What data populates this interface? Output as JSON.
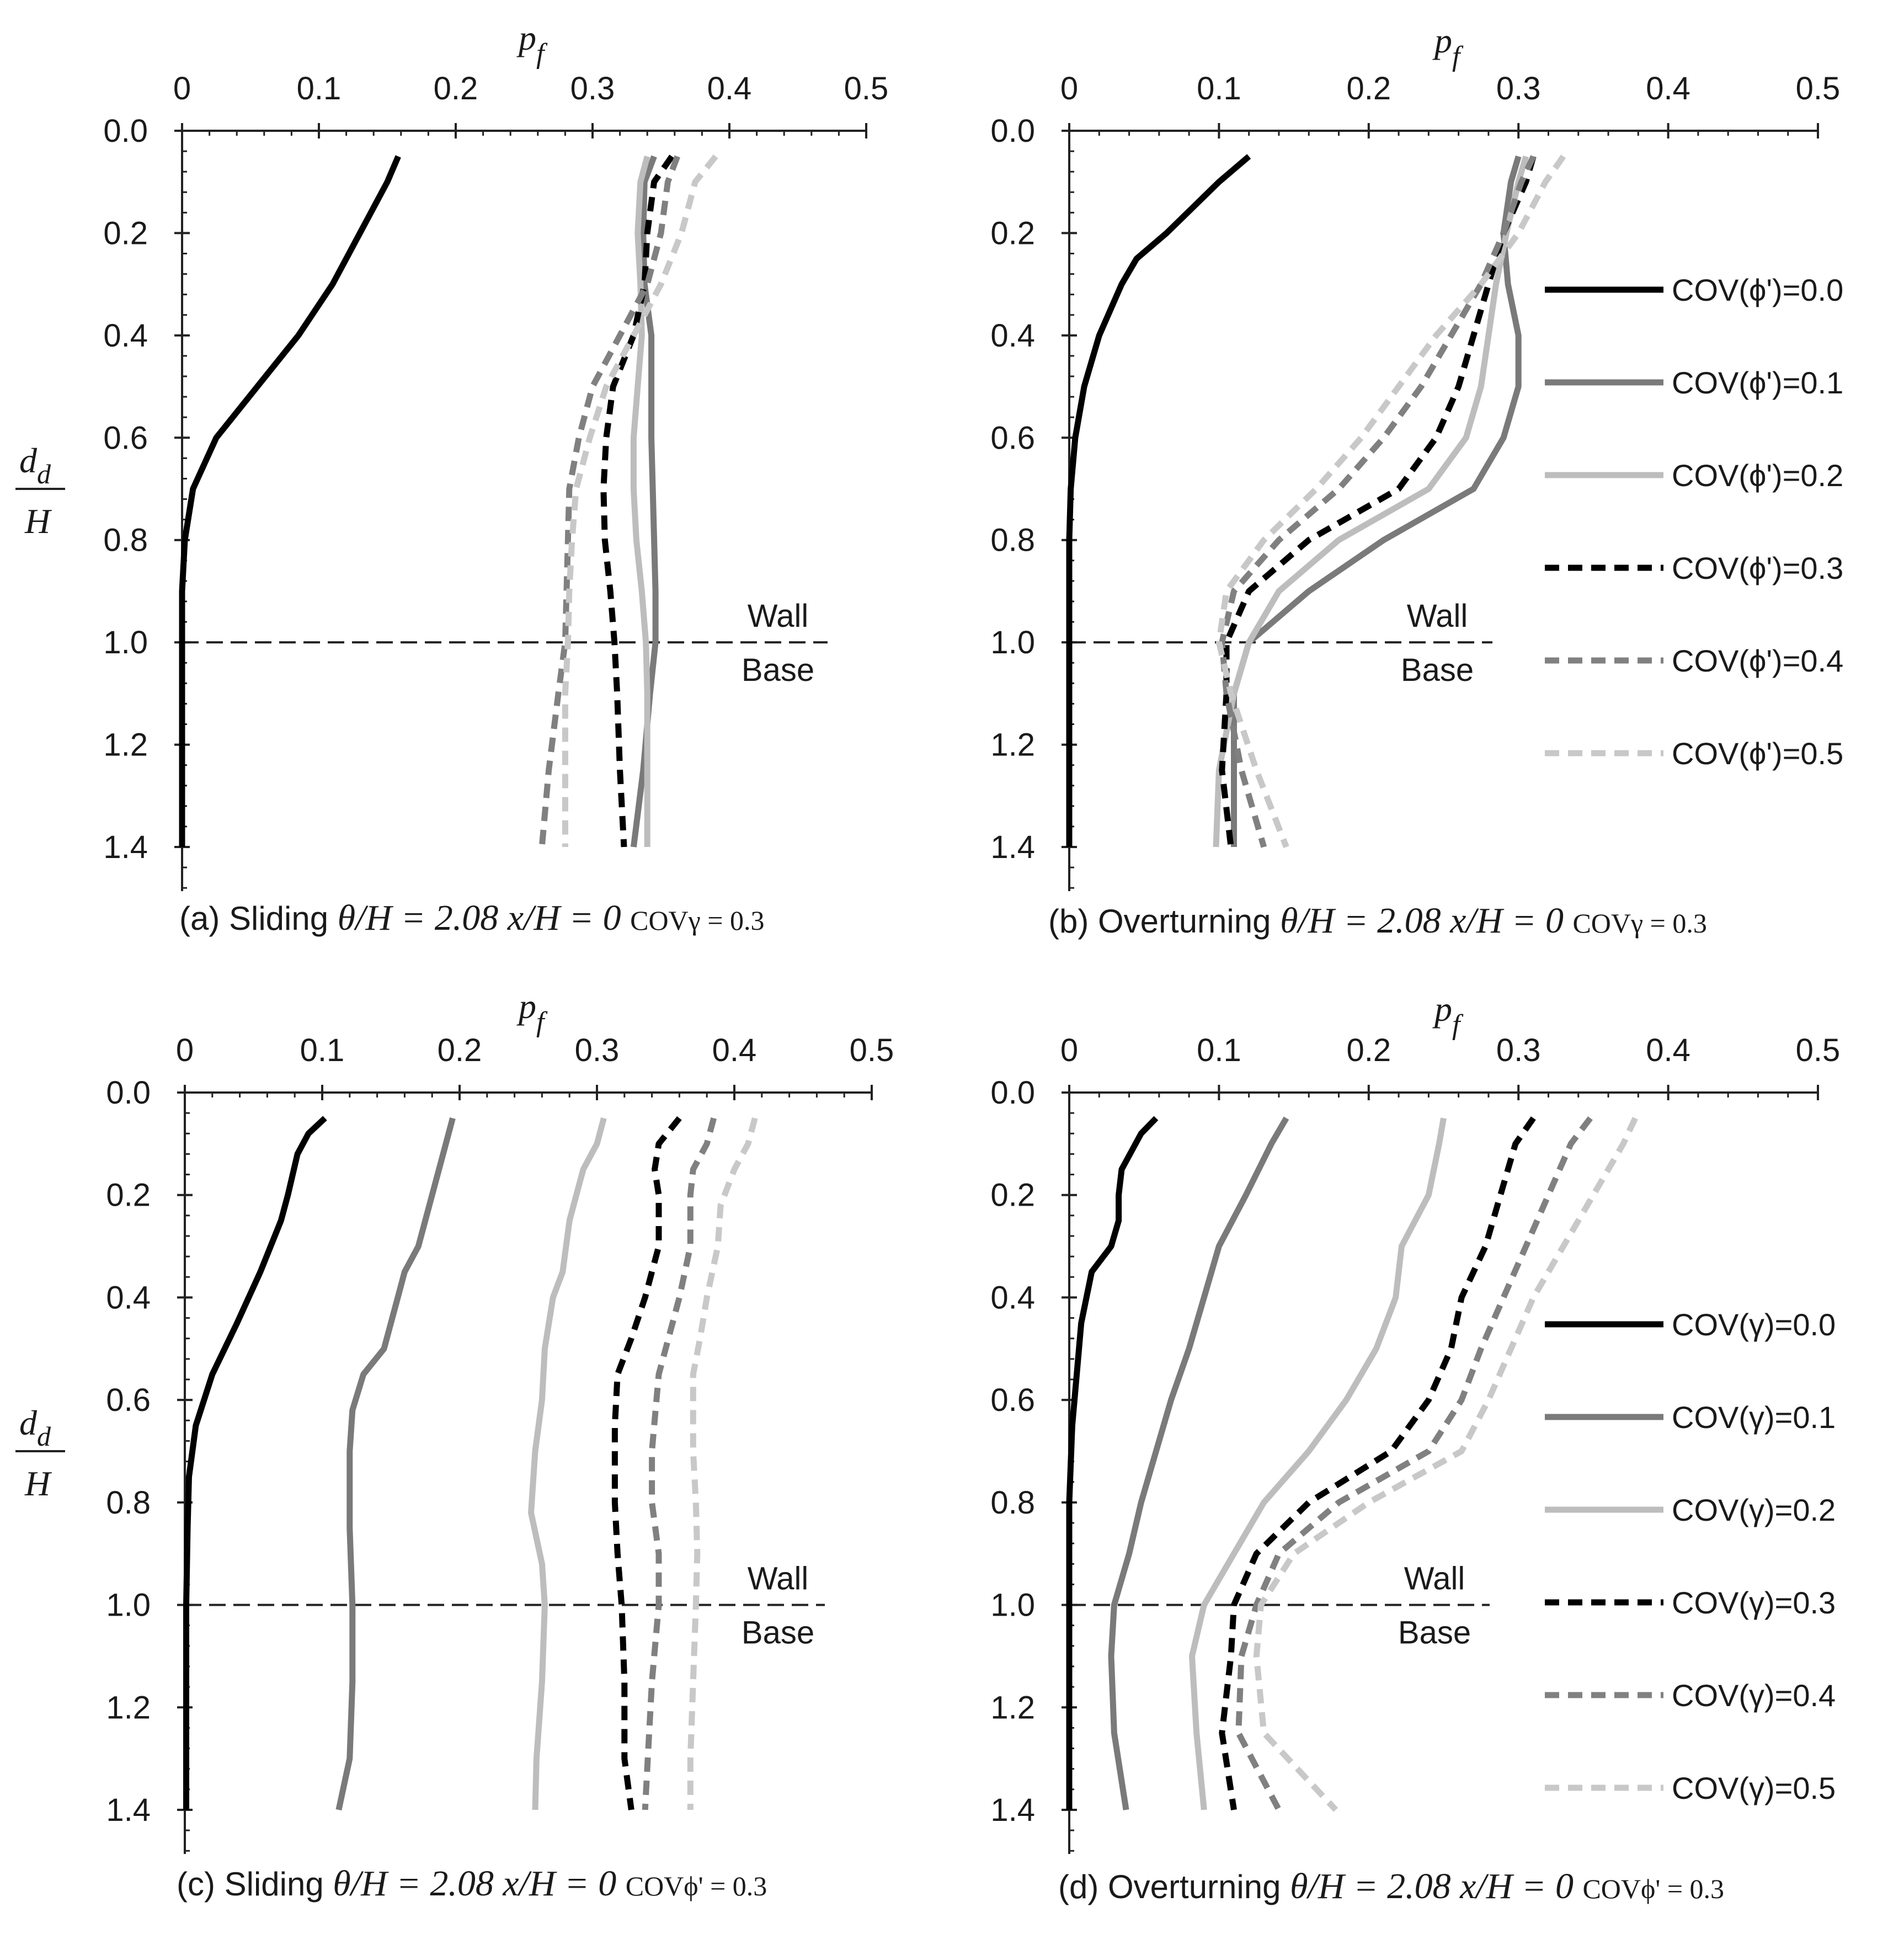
{
  "chart_data": [
    {
      "panel": "a",
      "type": "line",
      "xlabel": "p_f",
      "ylabel": "d_d / H",
      "xlim": [
        0,
        0.5
      ],
      "ylim": [
        0,
        1.4
      ],
      "xticks": [
        "0",
        "0.1",
        "0.2",
        "0.3",
        "0.4",
        "0.5"
      ],
      "yticks": [
        "0.0",
        "0.2",
        "0.4",
        "0.6",
        "0.8",
        "1.0",
        "1.2",
        "1.4"
      ],
      "annotations": {
        "wall": "Wall",
        "base": "Base",
        "wall_base_level": 1.0
      },
      "caption": {
        "prefix": "(a) Sliding",
        "formula": "θ/H = 2.08  x/H = 0",
        "cov": "COVγ = 0.3"
      },
      "legend": [],
      "series": [
        {
          "name": "COV(ϕ')=0.0",
          "color": "#000000",
          "dash": "solid",
          "x": [
            0.158,
            0.15,
            0.13,
            0.11,
            0.085,
            0.055,
            0.025,
            0.008,
            0.002,
            0,
            0,
            0,
            0,
            0
          ],
          "y": [
            0.05,
            0.1,
            0.2,
            0.3,
            0.4,
            0.5,
            0.6,
            0.7,
            0.8,
            0.9,
            1.0,
            1.1,
            1.2,
            1.4
          ]
        },
        {
          "name": "COV(ϕ')=0.1",
          "color": "#7a7a7a",
          "dash": "solid",
          "x": [
            0.345,
            0.338,
            0.337,
            0.338,
            0.343,
            0.343,
            0.343,
            0.344,
            0.345,
            0.346,
            0.346,
            0.342,
            0.337,
            0.33
          ],
          "y": [
            0.05,
            0.1,
            0.2,
            0.3,
            0.4,
            0.5,
            0.6,
            0.7,
            0.8,
            0.9,
            1.0,
            1.1,
            1.25,
            1.4
          ]
        },
        {
          "name": "COV(ϕ')=0.2",
          "color": "#bdbdbd",
          "dash": "solid",
          "x": [
            0.34,
            0.335,
            0.333,
            0.335,
            0.336,
            0.333,
            0.33,
            0.33,
            0.332,
            0.336,
            0.339,
            0.34,
            0.34,
            0.34
          ],
          "y": [
            0.05,
            0.1,
            0.2,
            0.3,
            0.4,
            0.5,
            0.6,
            0.7,
            0.8,
            0.9,
            1.0,
            1.1,
            1.25,
            1.4
          ]
        },
        {
          "name": "COV(ϕ')=0.3",
          "color": "#000000",
          "dash": "dash",
          "x": [
            0.358,
            0.345,
            0.34,
            0.338,
            0.33,
            0.315,
            0.31,
            0.308,
            0.309,
            0.313,
            0.316,
            0.318,
            0.32,
            0.323
          ],
          "y": [
            0.05,
            0.1,
            0.2,
            0.3,
            0.4,
            0.5,
            0.6,
            0.7,
            0.8,
            0.9,
            1.0,
            1.1,
            1.25,
            1.4
          ]
        },
        {
          "name": "COV(ϕ')=0.4",
          "color": "#808080",
          "dash": "dash",
          "x": [
            0.362,
            0.355,
            0.35,
            0.34,
            0.32,
            0.3,
            0.29,
            0.283,
            0.282,
            0.281,
            0.28,
            0.275,
            0.268,
            0.263
          ],
          "y": [
            0.05,
            0.1,
            0.2,
            0.3,
            0.4,
            0.5,
            0.6,
            0.7,
            0.8,
            0.9,
            1.0,
            1.1,
            1.25,
            1.4
          ]
        },
        {
          "name": "COV(ϕ')=0.5",
          "color": "#c8c8c8",
          "dash": "dash",
          "x": [
            0.39,
            0.375,
            0.365,
            0.35,
            0.33,
            0.31,
            0.298,
            0.288,
            0.285,
            0.283,
            0.282,
            0.28,
            0.28,
            0.28
          ],
          "y": [
            0.05,
            0.1,
            0.2,
            0.3,
            0.4,
            0.5,
            0.6,
            0.7,
            0.8,
            0.9,
            1.0,
            1.1,
            1.25,
            1.4
          ]
        }
      ]
    },
    {
      "panel": "b",
      "type": "line",
      "xlabel": "p_f",
      "ylabel": "",
      "xlim": [
        0,
        0.5
      ],
      "ylim": [
        0,
        1.4
      ],
      "xticks": [
        "0",
        "0.1",
        "0.2",
        "0.3",
        "0.4",
        "0.5"
      ],
      "yticks": [
        "0.0",
        "0.2",
        "0.4",
        "0.6",
        "0.8",
        "1.0",
        "1.2",
        "1.4"
      ],
      "annotations": {
        "wall": "Wall",
        "base": "Base",
        "wall_base_level": 1.0
      },
      "caption": {
        "prefix": "(b) Overturning",
        "formula": "θ/H = 2.08  x/H = 0",
        "cov": "COVγ = 0.3"
      },
      "legend": [
        "COV(ϕ')=0.0",
        "COV(ϕ')=0.1",
        "COV(ϕ')=0.2",
        "COV(ϕ')=0.3",
        "COV(ϕ')=0.4",
        "COV(ϕ')=0.5"
      ],
      "series": [
        {
          "name": "COV(ϕ')=0.0",
          "color": "#000000",
          "dash": "solid",
          "x": [
            0.12,
            0.1,
            0.065,
            0.045,
            0.035,
            0.02,
            0.01,
            0.004,
            0.001,
            0,
            0,
            0,
            0,
            0
          ],
          "y": [
            0.05,
            0.1,
            0.2,
            0.25,
            0.3,
            0.4,
            0.5,
            0.6,
            0.7,
            0.8,
            0.9,
            1.0,
            1.2,
            1.4
          ]
        },
        {
          "name": "COV(ϕ')=0.1",
          "color": "#7a7a7a",
          "dash": "solid",
          "x": [
            0.3,
            0.295,
            0.29,
            0.293,
            0.3,
            0.3,
            0.29,
            0.27,
            0.21,
            0.16,
            0.12,
            0.11,
            0.11,
            0.11
          ],
          "y": [
            0.05,
            0.1,
            0.2,
            0.3,
            0.4,
            0.5,
            0.6,
            0.7,
            0.8,
            0.9,
            1.0,
            1.1,
            1.25,
            1.4
          ]
        },
        {
          "name": "COV(ϕ')=0.2",
          "color": "#bdbdbd",
          "dash": "solid",
          "x": [
            0.305,
            0.3,
            0.292,
            0.285,
            0.28,
            0.275,
            0.265,
            0.24,
            0.18,
            0.14,
            0.12,
            0.11,
            0.1,
            0.098
          ],
          "y": [
            0.05,
            0.1,
            0.2,
            0.3,
            0.4,
            0.5,
            0.6,
            0.7,
            0.8,
            0.9,
            1.0,
            1.1,
            1.25,
            1.4
          ]
        },
        {
          "name": "COV(ϕ')=0.3",
          "color": "#000000",
          "dash": "dash",
          "x": [
            0.31,
            0.305,
            0.29,
            0.28,
            0.27,
            0.26,
            0.245,
            0.22,
            0.16,
            0.12,
            0.105,
            0.105,
            0.102,
            0.108
          ],
          "y": [
            0.05,
            0.1,
            0.2,
            0.3,
            0.4,
            0.5,
            0.6,
            0.7,
            0.8,
            0.9,
            1.0,
            1.1,
            1.25,
            1.4
          ]
        },
        {
          "name": "COV(ϕ')=0.4",
          "color": "#808080",
          "dash": "dash",
          "x": [
            0.31,
            0.302,
            0.29,
            0.275,
            0.255,
            0.235,
            0.21,
            0.18,
            0.14,
            0.11,
            0.102,
            0.105,
            0.115,
            0.13
          ],
          "y": [
            0.05,
            0.1,
            0.2,
            0.3,
            0.4,
            0.5,
            0.6,
            0.7,
            0.8,
            0.9,
            1.0,
            1.1,
            1.25,
            1.4
          ]
        },
        {
          "name": "COV(ϕ')=0.5",
          "color": "#c8c8c8",
          "dash": "dash",
          "x": [
            0.33,
            0.318,
            0.3,
            0.275,
            0.245,
            0.22,
            0.195,
            0.165,
            0.13,
            0.105,
            0.1,
            0.108,
            0.125,
            0.145
          ],
          "y": [
            0.05,
            0.1,
            0.2,
            0.3,
            0.4,
            0.5,
            0.6,
            0.7,
            0.8,
            0.9,
            1.0,
            1.1,
            1.25,
            1.4
          ]
        }
      ]
    },
    {
      "panel": "c",
      "type": "line",
      "xlabel": "p_f",
      "ylabel": "d_d / H",
      "xlim": [
        0,
        0.5
      ],
      "ylim": [
        0,
        1.4
      ],
      "xticks": [
        "0",
        "0.1",
        "0.2",
        "0.3",
        "0.4",
        "0.5"
      ],
      "yticks": [
        "0.0",
        "0.2",
        "0.4",
        "0.6",
        "0.8",
        "1.0",
        "1.2",
        "1.4"
      ],
      "annotations": {
        "wall": "Wall",
        "base": "Base",
        "wall_base_level": 1.0
      },
      "caption": {
        "prefix": "(c) Sliding",
        "formula": "θ/H = 2.08  x/H = 0",
        "cov": "COVϕ' = 0.3"
      },
      "legend": [],
      "series": [
        {
          "name": "COV(γ)=0.0",
          "color": "#000000",
          "dash": "solid",
          "x": [
            0.102,
            0.09,
            0.082,
            0.075,
            0.07,
            0.055,
            0.038,
            0.02,
            0.008,
            0.003,
            0.002,
            0.001,
            0.001,
            0.001,
            0.001
          ],
          "y": [
            0.05,
            0.08,
            0.12,
            0.2,
            0.25,
            0.35,
            0.45,
            0.55,
            0.65,
            0.75,
            0.85,
            1.0,
            1.1,
            1.25,
            1.4
          ]
        },
        {
          "name": "COV(γ)=0.1",
          "color": "#7a7a7a",
          "dash": "solid",
          "x": [
            0.195,
            0.19,
            0.18,
            0.17,
            0.16,
            0.155,
            0.145,
            0.13,
            0.122,
            0.12,
            0.12,
            0.122,
            0.122,
            0.12,
            0.112
          ],
          "y": [
            0.05,
            0.1,
            0.2,
            0.3,
            0.35,
            0.4,
            0.5,
            0.55,
            0.62,
            0.7,
            0.85,
            1.0,
            1.15,
            1.3,
            1.4
          ]
        },
        {
          "name": "COV(γ)=0.2",
          "color": "#bdbdbd",
          "dash": "solid",
          "x": [
            0.305,
            0.3,
            0.29,
            0.28,
            0.275,
            0.268,
            0.262,
            0.26,
            0.255,
            0.252,
            0.26,
            0.262,
            0.26,
            0.256,
            0.255
          ],
          "y": [
            0.05,
            0.1,
            0.15,
            0.25,
            0.35,
            0.4,
            0.5,
            0.6,
            0.7,
            0.82,
            0.92,
            1.0,
            1.15,
            1.3,
            1.4
          ]
        },
        {
          "name": "COV(γ)=0.3",
          "color": "#000000",
          "dash": "dash",
          "x": [
            0.36,
            0.345,
            0.342,
            0.345,
            0.345,
            0.335,
            0.325,
            0.315,
            0.313,
            0.313,
            0.315,
            0.318,
            0.32,
            0.32,
            0.325
          ],
          "y": [
            0.05,
            0.1,
            0.15,
            0.2,
            0.3,
            0.4,
            0.48,
            0.55,
            0.65,
            0.8,
            0.9,
            1.0,
            1.15,
            1.3,
            1.4
          ]
        },
        {
          "name": "COV(γ)=0.4",
          "color": "#808080",
          "dash": "dash",
          "x": [
            0.385,
            0.38,
            0.37,
            0.368,
            0.368,
            0.36,
            0.352,
            0.345,
            0.34,
            0.34,
            0.345,
            0.345,
            0.34,
            0.337,
            0.335
          ],
          "y": [
            0.05,
            0.1,
            0.15,
            0.2,
            0.3,
            0.4,
            0.48,
            0.55,
            0.7,
            0.8,
            0.9,
            1.0,
            1.15,
            1.3,
            1.4
          ]
        },
        {
          "name": "COV(γ)=0.5",
          "color": "#c8c8c8",
          "dash": "dash",
          "x": [
            0.415,
            0.41,
            0.4,
            0.39,
            0.388,
            0.38,
            0.375,
            0.37,
            0.37,
            0.372,
            0.373,
            0.372,
            0.37,
            0.368,
            0.368
          ],
          "y": [
            0.05,
            0.1,
            0.15,
            0.22,
            0.3,
            0.4,
            0.48,
            0.55,
            0.7,
            0.8,
            0.9,
            1.0,
            1.15,
            1.3,
            1.4
          ]
        }
      ]
    },
    {
      "panel": "d",
      "type": "line",
      "xlabel": "p_f",
      "ylabel": "",
      "xlim": [
        0,
        0.5
      ],
      "ylim": [
        0,
        1.4
      ],
      "xticks": [
        "0",
        "0.1",
        "0.2",
        "0.3",
        "0.4",
        "0.5"
      ],
      "yticks": [
        "0.0",
        "0.2",
        "0.4",
        "0.6",
        "0.8",
        "1.0",
        "1.2",
        "1.4"
      ],
      "annotations": {
        "wall": "Wall",
        "base": "Base",
        "wall_base_level": 1.0
      },
      "caption": {
        "prefix": "(d) Overturning",
        "formula": "θ/H = 2.08  x/H = 0",
        "cov": "COVϕ' = 0.3"
      },
      "legend": [
        "COV(γ)=0.0",
        "COV(γ)=0.1",
        "COV(γ)=0.2",
        "COV(γ)=0.3",
        "COV(γ)=0.4",
        "COV(γ)=0.5"
      ],
      "series": [
        {
          "name": "COV(γ)=0.0",
          "color": "#000000",
          "dash": "solid",
          "x": [
            0.058,
            0.048,
            0.035,
            0.033,
            0.033,
            0.028,
            0.015,
            0.008,
            0.005,
            0.002,
            0,
            0,
            0,
            0
          ],
          "y": [
            0.05,
            0.08,
            0.15,
            0.2,
            0.25,
            0.3,
            0.35,
            0.45,
            0.55,
            0.65,
            0.8,
            1.0,
            1.2,
            1.4
          ]
        },
        {
          "name": "COV(γ)=0.1",
          "color": "#7a7a7a",
          "dash": "solid",
          "x": [
            0.145,
            0.135,
            0.118,
            0.1,
            0.09,
            0.08,
            0.068,
            0.058,
            0.048,
            0.04,
            0.03,
            0.028,
            0.03,
            0.038
          ],
          "y": [
            0.05,
            0.1,
            0.2,
            0.3,
            0.4,
            0.5,
            0.6,
            0.7,
            0.8,
            0.9,
            1.0,
            1.1,
            1.25,
            1.4
          ]
        },
        {
          "name": "COV(γ)=0.2",
          "color": "#bdbdbd",
          "dash": "solid",
          "x": [
            0.25,
            0.247,
            0.24,
            0.222,
            0.218,
            0.205,
            0.185,
            0.16,
            0.13,
            0.11,
            0.09,
            0.082,
            0.085,
            0.09
          ],
          "y": [
            0.05,
            0.1,
            0.2,
            0.3,
            0.4,
            0.5,
            0.6,
            0.7,
            0.8,
            0.9,
            1.0,
            1.1,
            1.25,
            1.4
          ]
        },
        {
          "name": "COV(γ)=0.3",
          "color": "#000000",
          "dash": "dash",
          "x": [
            0.31,
            0.298,
            0.288,
            0.278,
            0.262,
            0.255,
            0.24,
            0.215,
            0.16,
            0.125,
            0.11,
            0.108,
            0.102,
            0.11
          ],
          "y": [
            0.05,
            0.1,
            0.2,
            0.3,
            0.4,
            0.5,
            0.6,
            0.7,
            0.8,
            0.9,
            1.0,
            1.1,
            1.25,
            1.4
          ]
        },
        {
          "name": "COV(γ)=0.4",
          "color": "#808080",
          "dash": "dash",
          "x": [
            0.348,
            0.335,
            0.32,
            0.305,
            0.29,
            0.275,
            0.262,
            0.24,
            0.18,
            0.14,
            0.125,
            0.115,
            0.113,
            0.14
          ],
          "y": [
            0.05,
            0.1,
            0.2,
            0.3,
            0.4,
            0.5,
            0.6,
            0.7,
            0.8,
            0.9,
            1.0,
            1.1,
            1.25,
            1.4
          ]
        },
        {
          "name": "COV(γ)=0.5",
          "color": "#c8c8c8",
          "dash": "dash",
          "x": [
            0.378,
            0.37,
            0.35,
            0.33,
            0.31,
            0.295,
            0.28,
            0.262,
            0.2,
            0.15,
            0.128,
            0.125,
            0.13,
            0.178
          ],
          "y": [
            0.05,
            0.1,
            0.2,
            0.3,
            0.4,
            0.5,
            0.6,
            0.7,
            0.8,
            0.9,
            1.0,
            1.1,
            1.25,
            1.4
          ]
        }
      ]
    }
  ]
}
